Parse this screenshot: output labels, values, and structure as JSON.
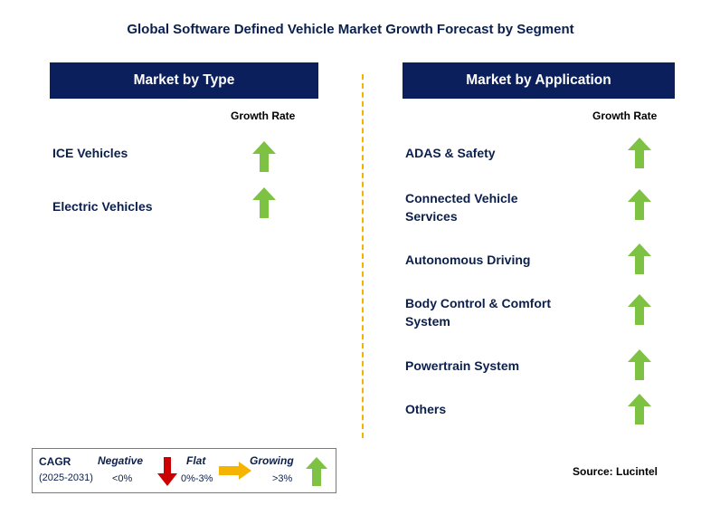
{
  "title": "Global Software Defined Vehicle Market Growth Forecast by Segment",
  "left": {
    "header": "Market by Type",
    "growth_rate_label": "Growth Rate",
    "items": [
      {
        "label_lines": [
          "ICE Vehicles"
        ],
        "growth": "growing"
      },
      {
        "label_lines": [
          "Electric Vehicles"
        ],
        "growth": "growing"
      }
    ]
  },
  "right": {
    "header": "Market by Application",
    "growth_rate_label": "Growth Rate",
    "items": [
      {
        "label_lines": [
          "ADAS & Safety"
        ],
        "growth": "growing"
      },
      {
        "label_lines": [
          "Connected Vehicle",
          "Services"
        ],
        "growth": "growing"
      },
      {
        "label_lines": [
          "Autonomous Driving"
        ],
        "growth": "growing"
      },
      {
        "label_lines": [
          "Body Control & Comfort",
          "System"
        ],
        "growth": "growing"
      },
      {
        "label_lines": [
          "Powertrain System"
        ],
        "growth": "growing"
      },
      {
        "label_lines": [
          "Others"
        ],
        "growth": "growing"
      }
    ]
  },
  "legend": {
    "cagr": "CAGR",
    "period": "(2025-2031)",
    "negative_label": "Negative",
    "negative_range": "<0%",
    "flat_label": "Flat",
    "flat_range": "0%-3%",
    "growing_label": "Growing",
    "growing_range": ">3%"
  },
  "colors": {
    "header_bg": "#0b1f5c",
    "growing": "#7dc242",
    "negative": "#cc0000",
    "flat": "#f5b400",
    "divider": "#f2b400"
  },
  "source": "Source: Lucintel"
}
